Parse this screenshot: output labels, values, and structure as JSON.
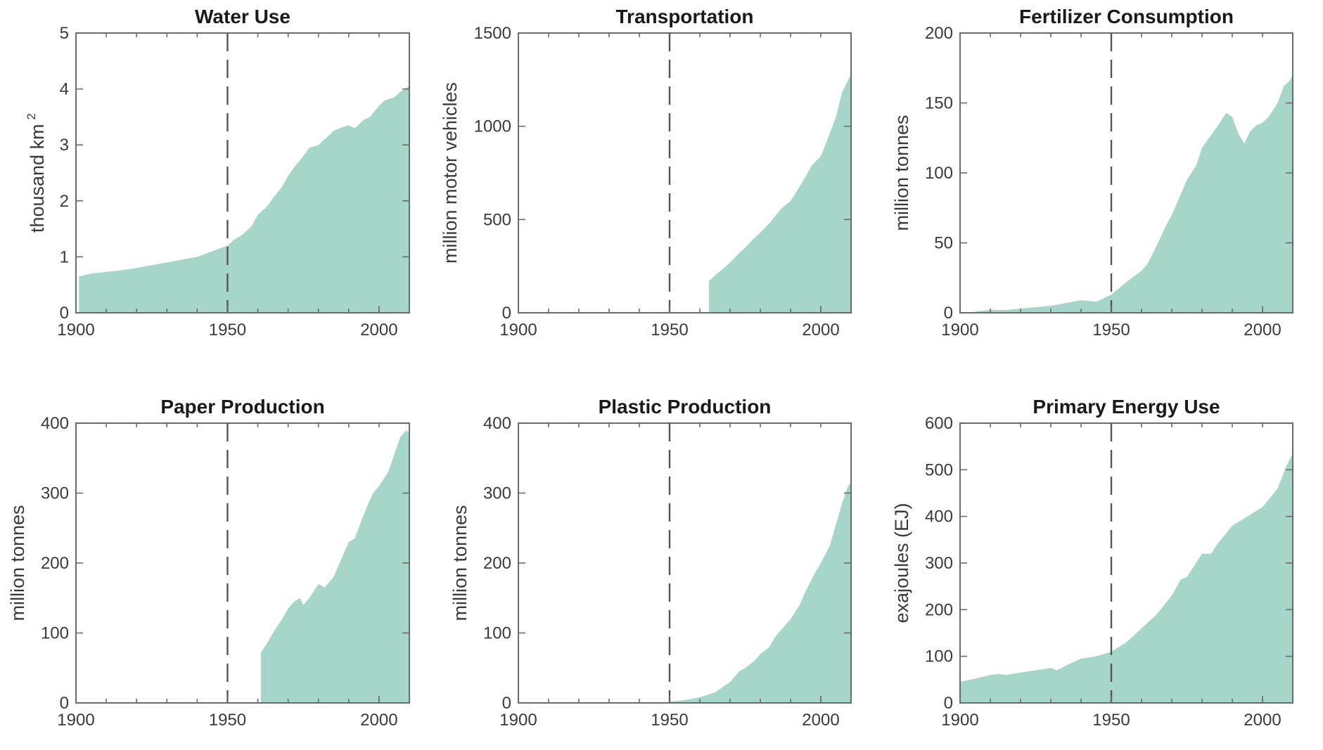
{
  "colors": {
    "fill": "#a6d6c9",
    "frame": "#6b6b6b",
    "text": "#1a1a1a",
    "ref_line": "#555555"
  },
  "chart_data": [
    {
      "id": "water",
      "type": "area",
      "title": "Water Use",
      "ylabel": "thousand km",
      "ylabel_sup": "2",
      "xlim": [
        1900,
        2010
      ],
      "ylim": [
        0,
        5
      ],
      "xticks": [
        1900,
        1950,
        2000
      ],
      "yticks": [
        0,
        1,
        2,
        3,
        4,
        5
      ],
      "reference_x": 1950,
      "series": [
        {
          "x": [
            1901,
            1905,
            1910,
            1915,
            1920,
            1925,
            1930,
            1935,
            1940,
            1945,
            1950,
            1952,
            1955,
            1958,
            1960,
            1963,
            1965,
            1968,
            1970,
            1972,
            1975,
            1977,
            1980,
            1983,
            1985,
            1987,
            1990,
            1992,
            1995,
            1997,
            2000,
            2002,
            2005,
            2007,
            2010
          ],
          "y": [
            0.65,
            0.7,
            0.73,
            0.76,
            0.8,
            0.85,
            0.9,
            0.95,
            1.0,
            1.1,
            1.2,
            1.3,
            1.4,
            1.55,
            1.75,
            1.9,
            2.05,
            2.25,
            2.45,
            2.6,
            2.8,
            2.95,
            3.0,
            3.15,
            3.25,
            3.3,
            3.35,
            3.3,
            3.45,
            3.5,
            3.7,
            3.8,
            3.85,
            3.95,
            4.05
          ]
        }
      ]
    },
    {
      "id": "transport",
      "type": "area",
      "title": "Transportation",
      "ylabel": "million motor vehicles",
      "xlim": [
        1900,
        2010
      ],
      "ylim": [
        0,
        1500
      ],
      "xticks": [
        1900,
        1950,
        2000
      ],
      "yticks": [
        0,
        500,
        1000,
        1500
      ],
      "reference_x": 1950,
      "series": [
        {
          "x": [
            1963,
            1965,
            1968,
            1970,
            1973,
            1975,
            1978,
            1980,
            1983,
            1985,
            1987,
            1990,
            1992,
            1995,
            1997,
            2000,
            2002,
            2005,
            2007,
            2010
          ],
          "y": [
            170,
            200,
            240,
            270,
            320,
            350,
            400,
            430,
            480,
            520,
            560,
            600,
            650,
            730,
            790,
            840,
            920,
            1050,
            1180,
            1280
          ]
        }
      ]
    },
    {
      "id": "fertilizer",
      "type": "area",
      "title": "Fertilizer Consumption",
      "ylabel": "million tonnes",
      "xlim": [
        1900,
        2010
      ],
      "ylim": [
        0,
        200
      ],
      "xticks": [
        1900,
        1950,
        2000
      ],
      "yticks": [
        0,
        50,
        100,
        150,
        200
      ],
      "reference_x": 1950,
      "series": [
        {
          "x": [
            1905,
            1910,
            1915,
            1920,
            1925,
            1930,
            1935,
            1940,
            1945,
            1950,
            1955,
            1960,
            1962,
            1965,
            1968,
            1970,
            1973,
            1975,
            1978,
            1980,
            1983,
            1985,
            1988,
            1990,
            1992,
            1994,
            1996,
            1998,
            2000,
            2002,
            2005,
            2007,
            2009,
            2010
          ],
          "y": [
            1,
            2,
            2,
            3,
            4,
            5,
            7,
            9,
            8,
            13,
            22,
            30,
            35,
            48,
            62,
            70,
            85,
            95,
            105,
            118,
            127,
            133,
            143,
            140,
            128,
            121,
            130,
            134,
            136,
            140,
            150,
            162,
            166,
            170
          ]
        }
      ]
    },
    {
      "id": "paper",
      "type": "area",
      "title": "Paper Production",
      "ylabel": "million tonnes",
      "xlim": [
        1900,
        2010
      ],
      "ylim": [
        0,
        400
      ],
      "xticks": [
        1900,
        1950,
        2000
      ],
      "yticks": [
        0,
        100,
        200,
        300,
        400
      ],
      "reference_x": 1950,
      "series": [
        {
          "x": [
            1961,
            1963,
            1965,
            1968,
            1970,
            1972,
            1974,
            1975,
            1977,
            1980,
            1982,
            1985,
            1988,
            1990,
            1992,
            1995,
            1998,
            2000,
            2003,
            2005,
            2007,
            2009,
            2010
          ],
          "y": [
            72,
            85,
            100,
            120,
            135,
            145,
            150,
            140,
            150,
            170,
            165,
            180,
            210,
            230,
            235,
            270,
            300,
            310,
            330,
            355,
            380,
            390,
            385
          ]
        }
      ]
    },
    {
      "id": "plastic",
      "type": "area",
      "title": "Plastic Production",
      "ylabel": "million tonnes",
      "xlim": [
        1900,
        2010
      ],
      "ylim": [
        0,
        400
      ],
      "xticks": [
        1900,
        1950,
        2000
      ],
      "yticks": [
        0,
        100,
        200,
        300,
        400
      ],
      "reference_x": 1950,
      "series": [
        {
          "x": [
            1950,
            1955,
            1960,
            1965,
            1970,
            1973,
            1975,
            1978,
            1980,
            1983,
            1985,
            1988,
            1990,
            1993,
            1995,
            1998,
            2000,
            2003,
            2005,
            2007,
            2009,
            2010
          ],
          "y": [
            2,
            4,
            8,
            15,
            30,
            45,
            50,
            60,
            70,
            80,
            95,
            110,
            120,
            140,
            160,
            185,
            200,
            225,
            255,
            285,
            310,
            315
          ]
        }
      ]
    },
    {
      "id": "energy",
      "type": "area",
      "title": "Primary Energy Use",
      "ylabel": "exajoules (EJ)",
      "xlim": [
        1900,
        2010
      ],
      "ylim": [
        0,
        600
      ],
      "xticks": [
        1900,
        1950,
        2000
      ],
      "yticks": [
        0,
        100,
        200,
        300,
        400,
        500,
        600
      ],
      "reference_x": 1950,
      "series": [
        {
          "x": [
            1900,
            1905,
            1910,
            1913,
            1915,
            1920,
            1925,
            1930,
            1932,
            1935,
            1940,
            1945,
            1950,
            1955,
            1960,
            1965,
            1970,
            1973,
            1975,
            1978,
            1980,
            1983,
            1985,
            1990,
            1995,
            2000,
            2005,
            2008,
            2010
          ],
          "y": [
            45,
            52,
            60,
            62,
            60,
            65,
            70,
            75,
            70,
            80,
            95,
            100,
            110,
            130,
            160,
            190,
            230,
            265,
            270,
            300,
            320,
            320,
            340,
            380,
            400,
            420,
            460,
            510,
            535
          ]
        }
      ]
    }
  ]
}
